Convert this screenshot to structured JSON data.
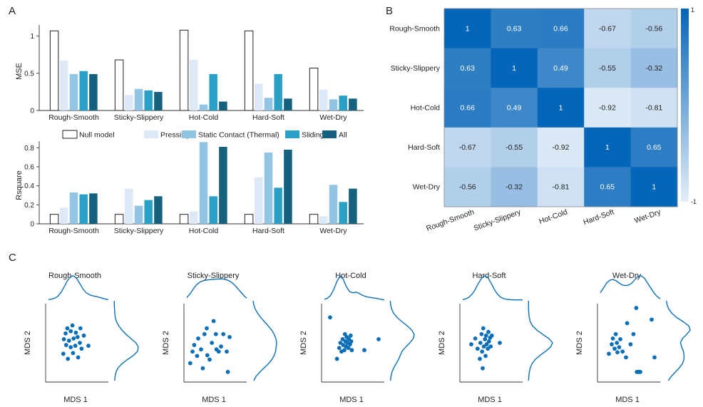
{
  "panel_labels": [
    "A",
    "B",
    "C"
  ],
  "legend": {
    "items": [
      {
        "label": "Null model",
        "color": "#ffffff"
      },
      {
        "label": "Pressing",
        "color": "#dde9f7"
      },
      {
        "label": "Static Contact (Thermal)",
        "color": "#93c4e4"
      },
      {
        "label": "Sliding",
        "color": "#2ba0c6"
      },
      {
        "label": "All",
        "color": "#16617e"
      }
    ]
  },
  "chart_data": [
    {
      "type": "bar",
      "panel": "A",
      "ylabel": "MSE",
      "ylim": [
        0,
        1.15
      ],
      "yticks": [
        0,
        0.5,
        1
      ],
      "categories": [
        "Rough-Smooth",
        "Sticky-Slippery",
        "Hot-Cold",
        "Hard-Soft",
        "Wet-Dry"
      ],
      "series": [
        {
          "name": "Null model",
          "values": [
            1.07,
            0.68,
            1.08,
            1.07,
            0.57
          ]
        },
        {
          "name": "Pressing",
          "values": [
            0.67,
            0.21,
            0.68,
            0.36,
            0.28
          ]
        },
        {
          "name": "Static Contact (Thermal)",
          "values": [
            0.49,
            0.29,
            0.08,
            0.17,
            0.15
          ]
        },
        {
          "name": "Sliding",
          "values": [
            0.53,
            0.27,
            0.49,
            0.49,
            0.2
          ]
        },
        {
          "name": "All",
          "values": [
            0.49,
            0.25,
            0.12,
            0.16,
            0.16
          ]
        }
      ]
    },
    {
      "type": "bar",
      "panel": "A",
      "ylabel": "Rsquare",
      "ylim": [
        0,
        0.87
      ],
      "yticks": [
        0,
        0.2,
        0.4,
        0.6,
        0.8
      ],
      "categories": [
        "Rough-Smooth",
        "Sticky-Slippery",
        "Hot-Cold",
        "Hard-Soft",
        "Wet-Dry"
      ],
      "series": [
        {
          "name": "Null model",
          "values": [
            0.1,
            0.1,
            0.1,
            0.1,
            0.1
          ]
        },
        {
          "name": "Pressing",
          "values": [
            0.17,
            0.37,
            0.13,
            0.49,
            0.08
          ]
        },
        {
          "name": "Static Contact (Thermal)",
          "values": [
            0.33,
            0.19,
            0.86,
            0.75,
            0.41
          ]
        },
        {
          "name": "Sliding",
          "values": [
            0.31,
            0.25,
            0.29,
            0.38,
            0.23
          ]
        },
        {
          "name": "All",
          "values": [
            0.32,
            0.29,
            0.81,
            0.78,
            0.37
          ]
        }
      ]
    },
    {
      "type": "heatmap",
      "panel": "B",
      "rows": [
        "Rough-Smooth",
        "Sticky-Slippery",
        "Hot-Cold",
        "Hard-Soft",
        "Wet-Dry"
      ],
      "cols": [
        "Rough-Smooth",
        "Sticky-Slippery",
        "Hot-Cold",
        "Hard-Soft",
        "Wet-Dry"
      ],
      "values": [
        [
          1,
          0.63,
          0.66,
          -0.67,
          -0.56
        ],
        [
          0.63,
          1,
          0.49,
          -0.55,
          -0.32
        ],
        [
          0.66,
          0.49,
          1,
          -0.92,
          -0.81
        ],
        [
          -0.67,
          -0.55,
          -0.92,
          1,
          0.65
        ],
        [
          -0.56,
          -0.32,
          -0.81,
          0.65,
          1
        ]
      ],
      "cell_labels": [
        [
          "1",
          "0.63",
          "0.66",
          "-0.67",
          "-0.56"
        ],
        [
          "0.63",
          "1",
          "0.49",
          "-0.55",
          "-0.32"
        ],
        [
          "0.66",
          "0.49",
          "1",
          "-0.92",
          "-0.81"
        ],
        [
          "-0.67",
          "-0.55",
          "-0.92",
          "1",
          "0.65"
        ],
        [
          "-0.56",
          "-0.32",
          "-0.81",
          "0.65",
          "1"
        ]
      ],
      "colorbar": {
        "min": -1,
        "max": 1,
        "min_label": "-1",
        "max_label": "1",
        "color_low": "#e4eef9",
        "color_high": "#0565b8"
      }
    },
    {
      "type": "scatter",
      "panel": "C",
      "xlabel": "MDS 1",
      "ylabel": "MDS 2",
      "color": "#0b6fb8",
      "plots": [
        {
          "title": "Rough-Smooth",
          "points": [
            [
              0.26,
              0.35
            ],
            [
              0.34,
              0.28
            ],
            [
              0.43,
              0.36
            ],
            [
              0.52,
              0.3
            ],
            [
              0.58,
              0.42
            ],
            [
              0.31,
              0.47
            ],
            [
              0.39,
              0.44
            ],
            [
              0.47,
              0.46
            ],
            [
              0.55,
              0.5
            ],
            [
              0.27,
              0.55
            ],
            [
              0.36,
              0.53
            ],
            [
              0.44,
              0.56
            ],
            [
              0.51,
              0.58
            ],
            [
              0.3,
              0.63
            ],
            [
              0.39,
              0.66
            ],
            [
              0.48,
              0.64
            ],
            [
              0.56,
              0.7
            ],
            [
              0.42,
              0.74
            ],
            [
              0.33,
              0.7
            ],
            [
              0.7,
              0.46
            ],
            [
              0.62,
              0.6
            ]
          ],
          "top_kde": [
            0.02,
            0.04,
            0.08,
            0.16,
            0.32,
            0.55,
            0.8,
            0.97,
            1.0,
            0.88,
            0.67,
            0.45,
            0.3,
            0.22,
            0.18,
            0.15,
            0.12,
            0.08,
            0.04,
            0.02
          ],
          "right_kde": [
            0.02,
            0.04,
            0.08,
            0.16,
            0.32,
            0.55,
            0.8,
            0.97,
            1.0,
            0.9,
            0.7,
            0.5,
            0.33,
            0.2,
            0.1,
            0.05,
            0.03,
            0.02,
            0.01,
            0.01
          ]
        },
        {
          "title": "Sticky-Slippery",
          "points": [
            [
              0.06,
              0.22
            ],
            [
              0.1,
              0.38
            ],
            [
              0.13,
              0.47
            ],
            [
              0.18,
              0.32
            ],
            [
              0.2,
              0.56
            ],
            [
              0.25,
              0.41
            ],
            [
              0.28,
              0.15
            ],
            [
              0.31,
              0.62
            ],
            [
              0.36,
              0.33
            ],
            [
              0.4,
              0.27
            ],
            [
              0.44,
              0.5
            ],
            [
              0.47,
              0.8
            ],
            [
              0.51,
              0.62
            ],
            [
              0.56,
              0.38
            ],
            [
              0.6,
              0.45
            ],
            [
              0.64,
              0.62
            ],
            [
              0.7,
              0.38
            ],
            [
              0.72,
              0.1
            ],
            [
              0.75,
              0.58
            ],
            [
              0.35,
              0.7
            ],
            [
              0.52,
              0.41
            ]
          ],
          "top_kde": [
            0.1,
            0.25,
            0.45,
            0.62,
            0.73,
            0.79,
            0.82,
            0.84,
            0.85,
            0.86,
            0.87,
            0.88,
            0.86,
            0.82,
            0.75,
            0.64,
            0.5,
            0.35,
            0.2,
            0.08
          ],
          "right_kde": [
            0.06,
            0.15,
            0.3,
            0.48,
            0.66,
            0.8,
            0.9,
            0.96,
            0.98,
            1.0,
            0.97,
            0.9,
            0.8,
            0.66,
            0.5,
            0.35,
            0.22,
            0.12,
            0.06,
            0.03
          ]
        },
        {
          "title": "Hot-Cold",
          "points": [
            [
              0.1,
              0.85
            ],
            [
              0.22,
              0.28
            ],
            [
              0.26,
              0.43
            ],
            [
              0.28,
              0.5
            ],
            [
              0.3,
              0.38
            ],
            [
              0.32,
              0.55
            ],
            [
              0.33,
              0.47
            ],
            [
              0.35,
              0.4
            ],
            [
              0.36,
              0.62
            ],
            [
              0.37,
              0.52
            ],
            [
              0.38,
              0.45
            ],
            [
              0.39,
              0.58
            ],
            [
              0.4,
              0.5
            ],
            [
              0.42,
              0.43
            ],
            [
              0.43,
              0.55
            ],
            [
              0.45,
              0.48
            ],
            [
              0.46,
              0.6
            ],
            [
              0.47,
              0.52
            ],
            [
              0.48,
              0.4
            ],
            [
              0.7,
              0.4
            ],
            [
              0.95,
              0.55
            ]
          ],
          "top_kde": [
            0.03,
            0.08,
            0.2,
            0.45,
            0.78,
            1.0,
            0.85,
            0.55,
            0.35,
            0.3,
            0.33,
            0.28,
            0.2,
            0.15,
            0.12,
            0.1,
            0.08,
            0.06,
            0.03,
            0.01
          ],
          "right_kde": [
            0.02,
            0.04,
            0.08,
            0.15,
            0.25,
            0.35,
            0.42,
            0.5,
            0.65,
            0.82,
            0.96,
            1.0,
            0.9,
            0.72,
            0.5,
            0.3,
            0.15,
            0.07,
            0.03,
            0.01
          ]
        },
        {
          "title": "Hard-Soft",
          "points": [
            [
              0.15,
              0.48
            ],
            [
              0.22,
              0.56
            ],
            [
              0.26,
              0.42
            ],
            [
              0.3,
              0.28
            ],
            [
              0.31,
              0.5
            ],
            [
              0.33,
              0.62
            ],
            [
              0.34,
              0.38
            ],
            [
              0.36,
              0.7
            ],
            [
              0.37,
              0.45
            ],
            [
              0.39,
              0.55
            ],
            [
              0.4,
              0.32
            ],
            [
              0.41,
              0.6
            ],
            [
              0.42,
              0.48
            ],
            [
              0.44,
              0.42
            ],
            [
              0.45,
              0.65
            ],
            [
              0.46,
              0.52
            ],
            [
              0.48,
              0.57
            ],
            [
              0.49,
              0.45
            ],
            [
              0.51,
              0.6
            ],
            [
              0.35,
              0.15
            ],
            [
              0.65,
              0.5
            ]
          ],
          "top_kde": [
            0.02,
            0.05,
            0.12,
            0.25,
            0.45,
            0.7,
            0.9,
            1.0,
            0.92,
            0.7,
            0.45,
            0.25,
            0.12,
            0.06,
            0.03,
            0.02,
            0.01,
            0.01,
            0.01,
            0.01
          ],
          "right_kde": [
            0.01,
            0.02,
            0.04,
            0.08,
            0.15,
            0.28,
            0.48,
            0.72,
            0.92,
            1.0,
            0.85,
            0.6,
            0.36,
            0.18,
            0.08,
            0.04,
            0.02,
            0.01,
            0.01,
            0.01
          ]
        },
        {
          "title": "Wet-Dry",
          "points": [
            [
              0.15,
              0.35
            ],
            [
              0.2,
              0.48
            ],
            [
              0.22,
              0.56
            ],
            [
              0.25,
              0.42
            ],
            [
              0.27,
              0.62
            ],
            [
              0.29,
              0.5
            ],
            [
              0.3,
              0.37
            ],
            [
              0.33,
              0.44
            ],
            [
              0.35,
              0.55
            ],
            [
              0.39,
              0.38
            ],
            [
              0.45,
              0.3
            ],
            [
              0.47,
              0.77
            ],
            [
              0.53,
              0.48
            ],
            [
              0.58,
              0.62
            ],
            [
              0.63,
              0.98
            ],
            [
              0.64,
              0.1
            ],
            [
              0.66,
              0.1
            ],
            [
              0.68,
              0.1
            ],
            [
              0.7,
              0.1
            ],
            [
              0.9,
              0.82
            ],
            [
              0.95,
              0.3
            ]
          ],
          "top_kde": [
            0.3,
            0.5,
            0.7,
            0.82,
            0.85,
            0.8,
            0.7,
            0.62,
            0.6,
            0.62,
            0.7,
            0.85,
            0.98,
            1.0,
            0.9,
            0.7,
            0.5,
            0.3,
            0.15,
            0.05
          ],
          "right_kde": [
            0.1,
            0.22,
            0.38,
            0.55,
            0.68,
            0.74,
            0.75,
            0.72,
            0.65,
            0.6,
            0.68,
            0.85,
            1.0,
            0.95,
            0.72,
            0.45,
            0.25,
            0.12,
            0.05,
            0.02
          ]
        }
      ]
    }
  ]
}
